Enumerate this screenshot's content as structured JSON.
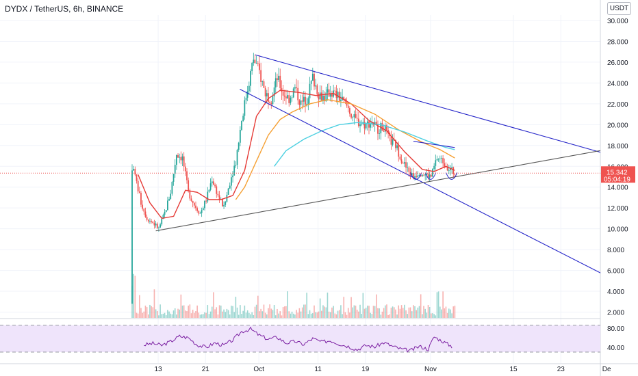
{
  "header": {
    "title": "DYDX / TetherUS, 6h, BINANCE"
  },
  "price_axis": {
    "currency": "USDT",
    "current_price": "15.342",
    "countdown": "05:04:19"
  },
  "colors": {
    "up": "#26a69a",
    "down": "#ef5350",
    "ma_fast": "#e53935",
    "ma_slow": "#f59f31",
    "ma_long": "#4dd0e1",
    "channel": "#2626c9",
    "support": "#555555",
    "rsi": "#7b1fa2",
    "rsi_band": "#efe4fb"
  },
  "chart_data": {
    "type": "candlestick",
    "title": "DYDX / TetherUS, 6h, BINANCE",
    "xlabel": "",
    "ylabel": "USDT",
    "ylim": [
      1,
      31
    ],
    "y_ticks": [
      2,
      4,
      6,
      8,
      10,
      12,
      14,
      16,
      18,
      20,
      22,
      24,
      26,
      28,
      30
    ],
    "y_tick_labels": [
      "2.000",
      "4.000",
      "6.000",
      "8.000",
      "10.000",
      "12.000",
      "14.000",
      "16.000",
      "18.000",
      "20.000",
      "22.000",
      "24.000",
      "26.000",
      "28.000",
      "30.000"
    ],
    "x_range_days": [
      0,
      46
    ],
    "x_ticks": [
      {
        "day": 4.4,
        "label": "13"
      },
      {
        "day": 12.4,
        "label": "21"
      },
      {
        "day": 21.4,
        "label": "Oct"
      },
      {
        "day": 31.4,
        "label": "11"
      },
      {
        "day": 39.4,
        "label": "19"
      },
      {
        "day": 50.4,
        "label": "Nov"
      },
      {
        "day": 64.4,
        "label": "15"
      },
      {
        "day": 72.4,
        "label": "23"
      },
      {
        "day": 79.4,
        "label": "De"
      }
    ],
    "price_path": [
      [
        0,
        2.8
      ],
      [
        0.25,
        15.8
      ],
      [
        1.5,
        12.5
      ],
      [
        2.5,
        11.0
      ],
      [
        3.5,
        10.6
      ],
      [
        4.5,
        10.0
      ],
      [
        5.5,
        11.5
      ],
      [
        6.5,
        13.5
      ],
      [
        7.5,
        17.2
      ],
      [
        8.5,
        16.8
      ],
      [
        9.5,
        13.5
      ],
      [
        10.5,
        12.3
      ],
      [
        11.5,
        11.5
      ],
      [
        12.5,
        12.8
      ],
      [
        13.5,
        14.8
      ],
      [
        14.5,
        13.2
      ],
      [
        15.5,
        12.0
      ],
      [
        16.5,
        14.5
      ],
      [
        17.5,
        16.5
      ],
      [
        18.5,
        20.5
      ],
      [
        19.5,
        23.5
      ],
      [
        20.5,
        26.3
      ],
      [
        21.5,
        25.0
      ],
      [
        22.5,
        23.0
      ],
      [
        23.5,
        22.5
      ],
      [
        24.5,
        24.5
      ],
      [
        25.5,
        23.0
      ],
      [
        26.5,
        22.5
      ],
      [
        27.5,
        23.5
      ],
      [
        28.5,
        22.0
      ],
      [
        29.5,
        22.5
      ],
      [
        30.5,
        24.5
      ],
      [
        31.5,
        23.0
      ],
      [
        32.5,
        22.6
      ],
      [
        33.5,
        23.2
      ],
      [
        34.5,
        22.8
      ],
      [
        35.5,
        22.3
      ],
      [
        36.5,
        21.6
      ],
      [
        37.5,
        20.5
      ],
      [
        38.5,
        20.2
      ],
      [
        39.5,
        20.0
      ],
      [
        40.5,
        20.3
      ],
      [
        41.5,
        19.6
      ],
      [
        42.5,
        19.8
      ],
      [
        43.5,
        18.5
      ],
      [
        44.5,
        18.0
      ],
      [
        45.5,
        16.7
      ],
      [
        46.5,
        15.6
      ],
      [
        47.5,
        15.0
      ],
      [
        48.5,
        15.5
      ],
      [
        49.5,
        15.2
      ],
      [
        50.5,
        15.0
      ],
      [
        51.5,
        16.8
      ],
      [
        52.5,
        16.5
      ],
      [
        53.5,
        15.8
      ],
      [
        54.5,
        15.34
      ]
    ],
    "moving_averages": [
      {
        "color_key": "ma_fast",
        "points": [
          [
            1,
            15.2
          ],
          [
            3,
            12.5
          ],
          [
            5,
            11.0
          ],
          [
            7,
            11.2
          ],
          [
            9,
            13.7
          ],
          [
            11,
            13.5
          ],
          [
            13,
            12.8
          ],
          [
            15,
            12.8
          ],
          [
            17,
            13.2
          ],
          [
            19,
            15.6
          ],
          [
            21,
            20.8
          ],
          [
            23,
            22.5
          ],
          [
            25,
            23.3
          ],
          [
            28,
            23.1
          ],
          [
            31,
            22.8
          ],
          [
            34,
            23.0
          ],
          [
            37,
            22.0
          ],
          [
            40,
            20.4
          ],
          [
            43,
            19.4
          ],
          [
            46,
            17.4
          ],
          [
            49,
            15.7
          ],
          [
            51,
            15.5
          ],
          [
            53,
            16.0
          ],
          [
            54.5,
            15.6
          ]
        ]
      },
      {
        "color_key": "ma_slow",
        "points": [
          [
            17.5,
            12.8
          ],
          [
            19,
            14.0
          ],
          [
            21,
            16.5
          ],
          [
            23,
            19.0
          ],
          [
            25,
            20.5
          ],
          [
            27,
            21.2
          ],
          [
            30,
            22.0
          ],
          [
            33,
            22.4
          ],
          [
            37,
            22.0
          ],
          [
            41,
            21.0
          ],
          [
            45,
            19.5
          ],
          [
            49,
            18.3
          ],
          [
            52,
            17.6
          ],
          [
            54.5,
            16.8
          ]
        ]
      },
      {
        "color_key": "ma_long",
        "points": [
          [
            24,
            16.0
          ],
          [
            26,
            17.5
          ],
          [
            29,
            18.6
          ],
          [
            32,
            19.4
          ],
          [
            35,
            20.0
          ],
          [
            38,
            20.2
          ],
          [
            42,
            20.0
          ],
          [
            46,
            19.3
          ],
          [
            50,
            18.4
          ],
          [
            53,
            17.8
          ],
          [
            54.5,
            17.6
          ]
        ]
      }
    ],
    "trend_lines": [
      {
        "color_key": "channel",
        "from": [
          20.8,
          26.7
        ],
        "to": [
          80.0,
          17.2
        ]
      },
      {
        "color_key": "channel",
        "from": [
          18.2,
          23.4
        ],
        "to": [
          80.0,
          5.5
        ]
      },
      {
        "color_key": "support",
        "from": [
          4.0,
          9.8
        ],
        "to": [
          80.0,
          17.6
        ]
      },
      {
        "color_key": "channel",
        "from": [
          47.5,
          18.4
        ],
        "to": [
          54.5,
          17.8
        ]
      }
    ],
    "rsi": {
      "ylim": [
        20,
        90
      ],
      "y_tick_labels": [
        "80.00",
        "40.00"
      ],
      "upper_band": 86,
      "lower_band": 30,
      "values": [
        [
          2.0,
          45
        ],
        [
          3.5,
          48
        ],
        [
          5.0,
          44
        ],
        [
          6.5,
          52
        ],
        [
          8.0,
          63
        ],
        [
          9.5,
          60
        ],
        [
          11.0,
          45
        ],
        [
          12.5,
          40
        ],
        [
          14.0,
          49
        ],
        [
          15.5,
          44
        ],
        [
          17.0,
          55
        ],
        [
          18.5,
          73
        ],
        [
          20.0,
          78
        ],
        [
          21.5,
          65
        ],
        [
          23.0,
          57
        ],
        [
          24.5,
          61
        ],
        [
          26.0,
          49
        ],
        [
          27.5,
          52
        ],
        [
          29.0,
          46
        ],
        [
          30.5,
          58
        ],
        [
          32.0,
          51
        ],
        [
          33.5,
          54
        ],
        [
          35.0,
          47
        ],
        [
          36.5,
          42
        ],
        [
          38.0,
          35
        ],
        [
          39.5,
          44
        ],
        [
          41.0,
          41
        ],
        [
          42.5,
          50
        ],
        [
          44.0,
          42
        ],
        [
          45.5,
          36
        ],
        [
          47.0,
          33
        ],
        [
          48.5,
          42
        ],
        [
          50.0,
          36
        ],
        [
          51.0,
          62
        ],
        [
          52.5,
          52
        ],
        [
          54.0,
          42
        ]
      ]
    }
  }
}
